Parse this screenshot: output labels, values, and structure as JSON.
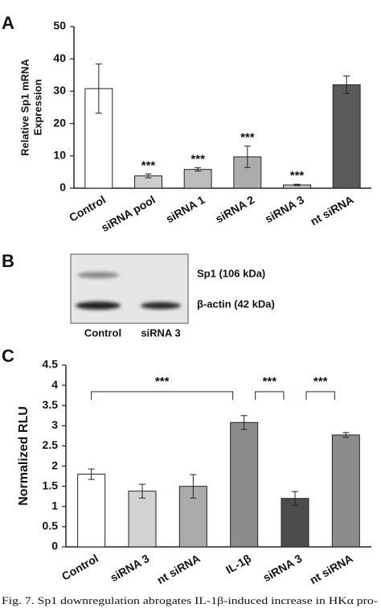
{
  "chart_data": [
    {
      "type": "bar",
      "panel": "A",
      "ylabel": [
        "Relative Sp1 mRNA",
        "Expression"
      ],
      "categories": [
        "Control",
        "siRNA pool",
        "siRNA 1",
        "siRNA 2",
        "siRNA 3",
        "nt siRNA"
      ],
      "values": [
        30.8,
        3.8,
        5.8,
        9.7,
        1.0,
        32.0
      ],
      "errors": [
        7.6,
        0.6,
        0.5,
        3.3,
        0.2,
        2.7
      ],
      "colors": [
        "#ffffff",
        "#cdcdcd",
        "#bcbcbc",
        "#acacac",
        "#c4c4c4",
        "#5a5a5a"
      ],
      "significance": [
        null,
        "***",
        "***",
        "***",
        "***",
        null
      ],
      "ylim": [
        0,
        50
      ],
      "yticks": [
        0,
        10,
        20,
        30,
        40,
        50
      ]
    },
    {
      "type": "bar",
      "panel": "C",
      "ylabel": [
        "Normalized RLU"
      ],
      "categories": [
        "Control",
        "siRNA 3",
        "nt siRNA",
        "IL-1β",
        "siRNA 3",
        "nt siRNA"
      ],
      "values": [
        1.8,
        1.38,
        1.5,
        3.08,
        1.2,
        2.77
      ],
      "errors": [
        0.13,
        0.17,
        0.29,
        0.17,
        0.17,
        0.06
      ],
      "colors": [
        "#ffffff",
        "#d2d2d2",
        "#ababab",
        "#8c8c8c",
        "#4c4c4c",
        "#8c8c8c"
      ],
      "comparisons": [
        {
          "from": 0,
          "to": 3,
          "label": "***"
        },
        {
          "from": 3,
          "to": 4,
          "label": "***"
        },
        {
          "from": 4,
          "to": 5,
          "label": "***"
        }
      ],
      "ylim": [
        0,
        4.5
      ],
      "yticks": [
        0,
        0.5,
        1,
        1.5,
        2,
        2.5,
        3,
        3.5,
        4,
        4.5
      ]
    }
  ],
  "blot": {
    "panel": "B",
    "bands": [
      "Sp1 (106 kDa)",
      "β-actin (42 kDa)"
    ],
    "lanes": [
      "Control",
      "siRNA 3"
    ]
  },
  "caption": "Fig. 7. Sp1 downregulation abrogates IL-1β-induced increase in HKα pro-"
}
